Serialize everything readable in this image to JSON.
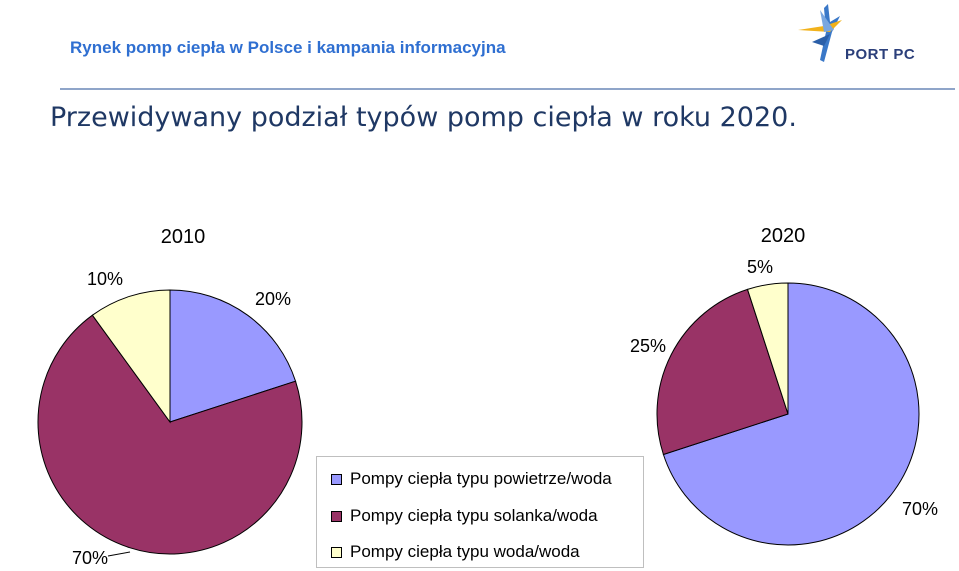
{
  "header": {
    "title": "Rynek pomp ciepła w Polsce i kampania informacyjna",
    "logo_text": "PORT PC"
  },
  "slide_title": "Przewidywany podział typów pomp ciepła w roku 2020.",
  "colors": {
    "header_title": "#2f6fd1",
    "slide_title": "#1f3864",
    "powietrze": "#9999ff",
    "solanka": "#993366",
    "woda": "#ffffcc"
  },
  "legend": [
    {
      "label": "Pompy ciepła typu powietrze/woda",
      "color": "#9999ff"
    },
    {
      "label": "Pompy ciepła typu solanka/woda",
      "color": "#993366"
    },
    {
      "label": "Pompy ciepła typu woda/woda",
      "color": "#ffffcc"
    }
  ],
  "chart_data": [
    {
      "type": "pie",
      "title": "2010",
      "categories": [
        "Pompy ciepła typu powietrze/woda",
        "Pompy ciepła typu solanka/woda",
        "Pompy ciepła typu woda/woda"
      ],
      "values": [
        20,
        70,
        10
      ],
      "labels": [
        "20%",
        "70%",
        "10%"
      ],
      "colors": [
        "#9999ff",
        "#993366",
        "#ffffcc"
      ]
    },
    {
      "type": "pie",
      "title": "2020",
      "categories": [
        "Pompy ciepła typu powietrze/woda",
        "Pompy ciepła typu solanka/woda",
        "Pompy ciepła typu woda/woda"
      ],
      "values": [
        70,
        25,
        5
      ],
      "labels": [
        "70%",
        "25%",
        "5%"
      ],
      "colors": [
        "#9999ff",
        "#993366",
        "#ffffcc"
      ]
    }
  ]
}
